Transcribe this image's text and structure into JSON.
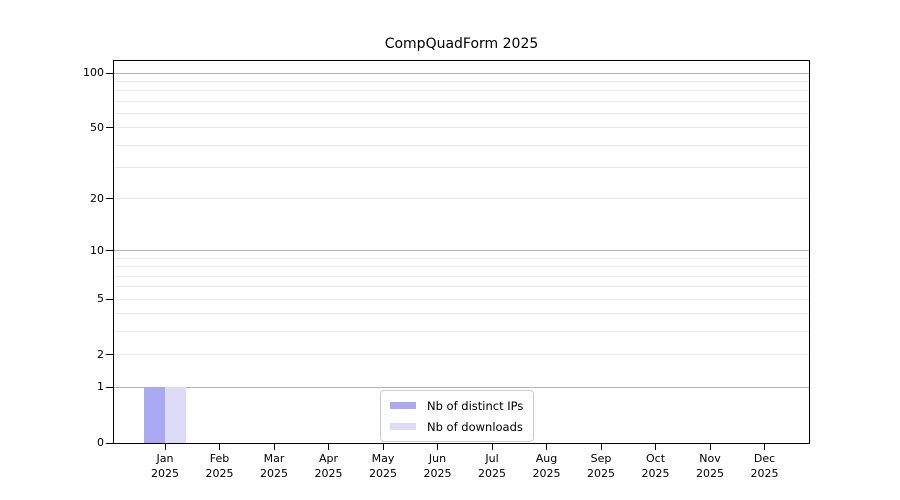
{
  "chart_data": {
    "type": "bar",
    "title": "CompQuadForm 2025",
    "categories": [
      "Jan 2025",
      "Feb 2025",
      "Mar 2025",
      "Apr 2025",
      "May 2025",
      "Jun 2025",
      "Jul 2025",
      "Aug 2025",
      "Sep 2025",
      "Oct 2025",
      "Nov 2025",
      "Dec 2025"
    ],
    "series": [
      {
        "name": "Nb of distinct IPs",
        "color": "#aaaaf4",
        "values": [
          1,
          0,
          0,
          0,
          0,
          0,
          0,
          0,
          0,
          0,
          0,
          0
        ]
      },
      {
        "name": "Nb of downloads",
        "color": "#dcdcf8",
        "values": [
          1,
          0,
          0,
          0,
          0,
          0,
          0,
          0,
          0,
          0,
          0,
          0
        ]
      }
    ],
    "yscale": "log1p",
    "ylim": [
      0,
      116
    ],
    "y_ticks": [
      0,
      1,
      2,
      5,
      10,
      20,
      50,
      100
    ],
    "y_major_gridlines": [
      1,
      10,
      100
    ],
    "y_minor_gridlines": [
      2,
      3,
      4,
      5,
      6,
      7,
      8,
      9,
      20,
      30,
      40,
      50,
      60,
      70,
      80,
      90
    ],
    "xlabel": "",
    "ylabel": "",
    "grid": true,
    "legend_position": "lower center",
    "colors": {
      "axis": "#000000",
      "grid_major": "#b3b3b3",
      "grid_minor": "#e9e9e9",
      "background": "#ffffff"
    }
  }
}
